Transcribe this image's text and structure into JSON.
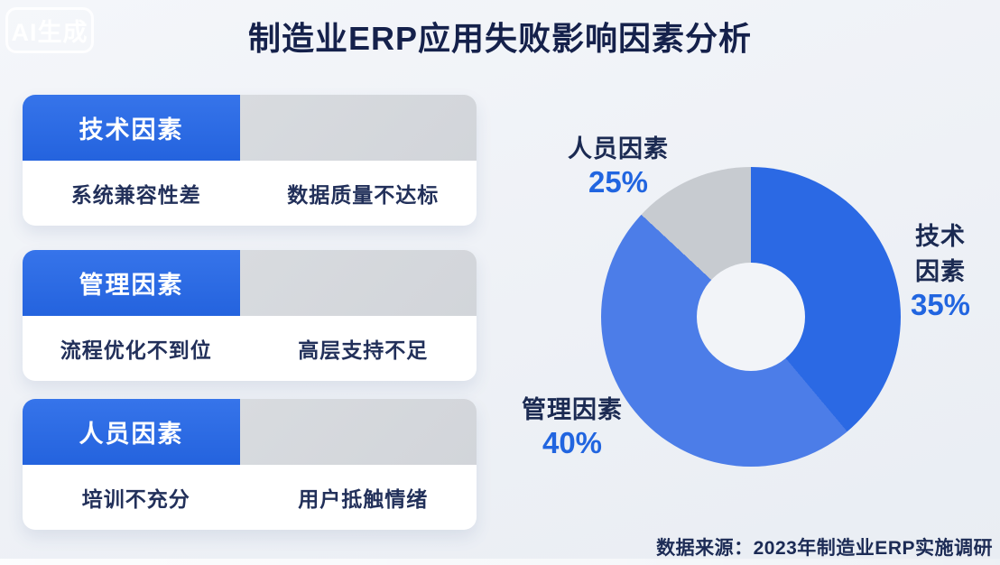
{
  "watermark": {
    "label": "AI生成"
  },
  "title": "制造业ERP应用失败影响因素分析",
  "factor_cards": [
    {
      "header": "技术因素",
      "items": [
        "系统兼容性差",
        "数据质量不达标"
      ]
    },
    {
      "header": "管理因素",
      "items": [
        "流程优化不到位",
        "高层支持不足"
      ]
    },
    {
      "header": "人员因素",
      "items": [
        "培训不充分",
        "用户抵触情绪"
      ]
    }
  ],
  "chart_data": {
    "type": "pie",
    "subtype": "donut",
    "title": "制造业ERP应用失败影响因素分析",
    "categories": [
      "技术因素",
      "管理因素",
      "人员因素"
    ],
    "values": [
      35,
      40,
      25
    ],
    "unit": "%",
    "colors": [
      "#2b69e4",
      "#4c7de8",
      "#c7cbd0"
    ],
    "start_angle_deg": 0,
    "direction": "clockwise",
    "legend_position": "outside-labels",
    "labels": [
      {
        "name": "技术因素",
        "value": "35%"
      },
      {
        "name": "管理因素",
        "value": "40%"
      },
      {
        "name": "人员因素",
        "value": "25%"
      }
    ]
  },
  "source_note": "数据来源：2023年制造业ERP实施调研",
  "accent_colors": {
    "header_blue": "#2a69e3",
    "percent_blue": "#2165e0",
    "navy_text": "#1b2a52",
    "gray_slice": "#c7cbd0"
  }
}
